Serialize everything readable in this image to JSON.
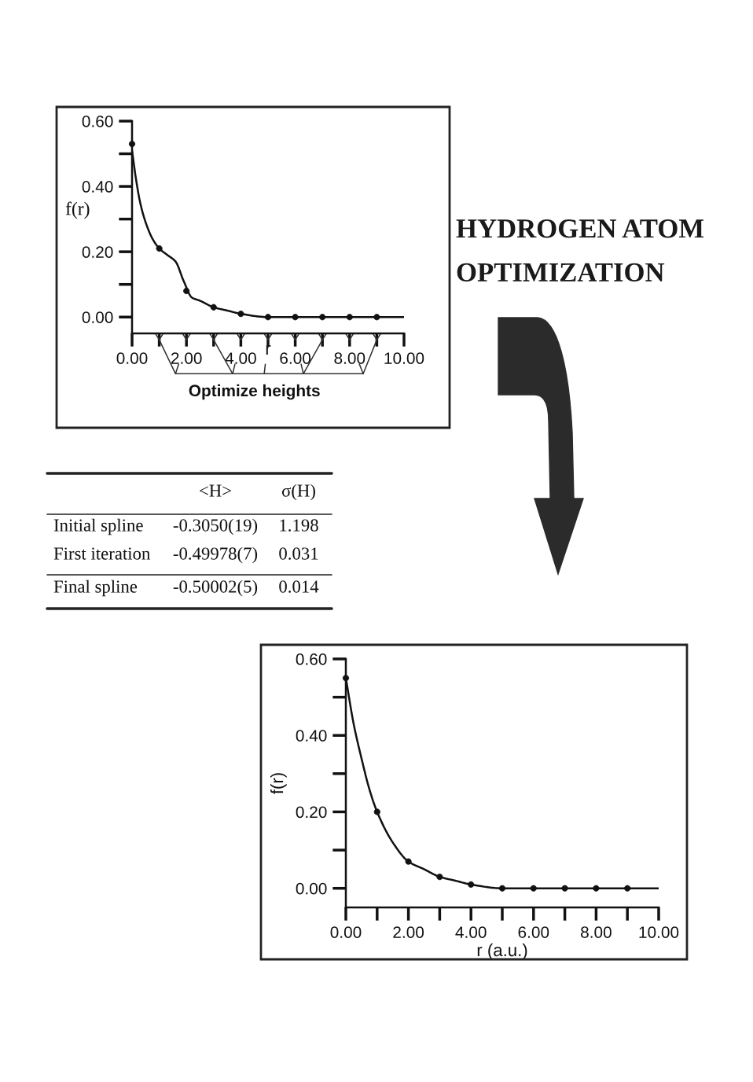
{
  "chart_data": [
    {
      "type": "line",
      "xlabel": "r",
      "ylabel": "f(r)",
      "annotations": [
        "Optimize heights"
      ],
      "xlim": [
        0,
        10
      ],
      "ylim": [
        -0.05,
        0.6
      ],
      "xticks": [
        {
          "value": 0,
          "label": "0.00"
        },
        {
          "value": 1,
          "label": null
        },
        {
          "value": 2,
          "label": "2.00"
        },
        {
          "value": 3,
          "label": null
        },
        {
          "value": 4,
          "label": "4.00"
        },
        {
          "value": 5,
          "label": null
        },
        {
          "value": 6,
          "label": "6.00"
        },
        {
          "value": 7,
          "label": null
        },
        {
          "value": 8,
          "label": "8.00"
        },
        {
          "value": 9,
          "label": null
        },
        {
          "value": 10,
          "label": "10.00"
        }
      ],
      "yticks": [
        {
          "value": 0,
          "label": "0.00"
        },
        {
          "value": 0.1,
          "label": null
        },
        {
          "value": 0.2,
          "label": "0.20"
        },
        {
          "value": 0.3,
          "label": null
        },
        {
          "value": 0.4,
          "label": "0.40"
        },
        {
          "value": 0.5,
          "label": null
        },
        {
          "value": 0.6,
          "label": "0.60"
        }
      ],
      "series": [
        {
          "type": "line",
          "color": "#111111",
          "x": [
            0,
            0.15,
            0.3,
            0.5,
            0.75,
            1,
            1.3,
            1.6,
            1.9,
            2.2,
            2.5,
            3,
            3.5,
            4,
            5,
            6,
            7,
            8,
            9,
            10
          ],
          "values": [
            0.51,
            0.42,
            0.35,
            0.29,
            0.24,
            0.21,
            0.19,
            0.17,
            0.11,
            0.06,
            0.05,
            0.03,
            0.02,
            0.01,
            0.0,
            0.0,
            0.0,
            0.0,
            0.0,
            0.0
          ]
        },
        {
          "type": "scatter",
          "color": "#111111",
          "x": [
            0,
            1,
            2,
            3,
            4,
            5,
            6,
            7,
            8,
            9
          ],
          "values": [
            0.53,
            0.21,
            0.08,
            0.03,
            0.01,
            0.0,
            0.0,
            0.0,
            0.0,
            0.0
          ]
        }
      ]
    },
    {
      "type": "other",
      "title": "HYDROGEN ATOM OPTIMIZATION",
      "annotations": [
        "<H>",
        "σ(H)",
        "Initial spline",
        "-0.3050(19)",
        "1.198",
        "First iteration",
        "-0.49978(7)",
        "0.031",
        "Final spline",
        "-0.50002(5)",
        "0.014"
      ]
    },
    {
      "type": "line",
      "xlabel": "r (a.u.)",
      "ylabel": "f(r)",
      "xlim": [
        0,
        10
      ],
      "ylim": [
        -0.05,
        0.6
      ],
      "xticks": [
        {
          "value": 0,
          "label": "0.00"
        },
        {
          "value": 1,
          "label": null
        },
        {
          "value": 2,
          "label": "2.00"
        },
        {
          "value": 3,
          "label": null
        },
        {
          "value": 4,
          "label": "4.00"
        },
        {
          "value": 5,
          "label": null
        },
        {
          "value": 6,
          "label": "6.00"
        },
        {
          "value": 7,
          "label": null
        },
        {
          "value": 8,
          "label": "8.00"
        },
        {
          "value": 9,
          "label": null
        },
        {
          "value": 10,
          "label": "10.00"
        }
      ],
      "yticks": [
        {
          "value": 0,
          "label": "0.00"
        },
        {
          "value": 0.1,
          "label": null
        },
        {
          "value": 0.2,
          "label": "0.20"
        },
        {
          "value": 0.3,
          "label": null
        },
        {
          "value": 0.4,
          "label": "0.40"
        },
        {
          "value": 0.5,
          "label": null
        },
        {
          "value": 0.6,
          "label": "0.60"
        }
      ],
      "series": [
        {
          "type": "line",
          "color": "#111111",
          "x": [
            0,
            0.25,
            0.5,
            0.75,
            1,
            1.5,
            2,
            2.5,
            3,
            3.5,
            4,
            5,
            6,
            7,
            8,
            9,
            10
          ],
          "values": [
            0.55,
            0.43,
            0.34,
            0.26,
            0.2,
            0.12,
            0.07,
            0.05,
            0.03,
            0.02,
            0.01,
            0.0,
            0.0,
            0.0,
            0.0,
            0.0,
            0.0
          ]
        },
        {
          "type": "scatter",
          "color": "#111111",
          "x": [
            0,
            1,
            2,
            3,
            4,
            5,
            6,
            7,
            8,
            9
          ],
          "values": [
            0.55,
            0.2,
            0.07,
            0.03,
            0.01,
            0.0,
            0.0,
            0.0,
            0.0,
            0.0
          ]
        }
      ]
    }
  ]
}
